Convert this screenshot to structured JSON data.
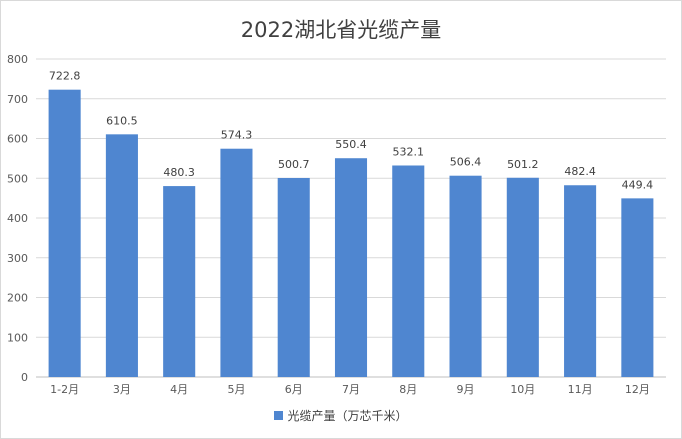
{
  "chart_data": {
    "type": "bar",
    "title": "2022湖北省光缆产量",
    "categories": [
      "1-2月",
      "3月",
      "4月",
      "5月",
      "6月",
      "7月",
      "8月",
      "9月",
      "10月",
      "11月",
      "12月"
    ],
    "series": [
      {
        "name": "光缆产量（万芯千米）",
        "values": [
          722.8,
          610.5,
          480.3,
          574.3,
          500.7,
          550.4,
          532.1,
          506.4,
          501.2,
          482.4,
          449.4
        ],
        "color": "#4f86d0"
      }
    ],
    "value_labels": [
      "722.8",
      "610.5",
      "480.3",
      "574.3",
      "500.7",
      "550.4",
      "532.1",
      "506.4",
      "501.2",
      "482.4",
      "449.4"
    ],
    "ylim": [
      0,
      800
    ],
    "yticks": [
      "0",
      "100",
      "200",
      "300",
      "400",
      "500",
      "600",
      "700",
      "800"
    ],
    "grid": true,
    "legend_position": "bottom"
  }
}
